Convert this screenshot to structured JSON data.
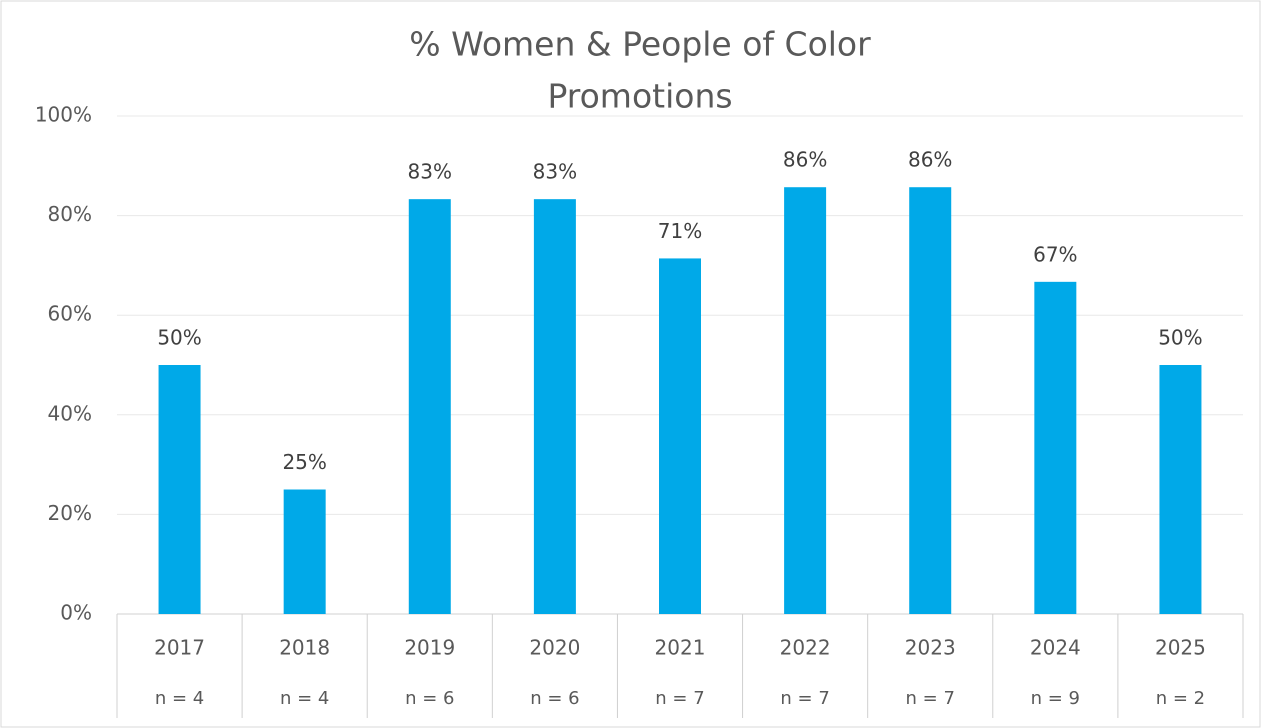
{
  "chart_data": {
    "type": "bar",
    "title": [
      "% Women & People of Color",
      "Promotions"
    ],
    "categories": [
      "2017",
      "2018",
      "2019",
      "2020",
      "2021",
      "2022",
      "2023",
      "2024",
      "2025"
    ],
    "category_sublabels": [
      "n = 4",
      "n = 4",
      "n = 6",
      "n = 6",
      "n = 7",
      "n = 7",
      "n = 7",
      "n = 9",
      "n = 2"
    ],
    "values": [
      50,
      25,
      83.3,
      83.3,
      71.4,
      85.7,
      85.7,
      66.7,
      50
    ],
    "value_labels": [
      "50%",
      "25%",
      "83%",
      "83%",
      "71%",
      "86%",
      "86%",
      "67%",
      "50%"
    ],
    "color": "#00a9e8",
    "ylim": [
      0,
      100
    ],
    "yticks": [
      {
        "value": 0,
        "label": "0%"
      },
      {
        "value": 20,
        "label": "20%"
      },
      {
        "value": 40,
        "label": "40%"
      },
      {
        "value": 60,
        "label": "60%"
      },
      {
        "value": 80,
        "label": "80%"
      },
      {
        "value": 100,
        "label": "100%"
      }
    ],
    "grid": true
  }
}
